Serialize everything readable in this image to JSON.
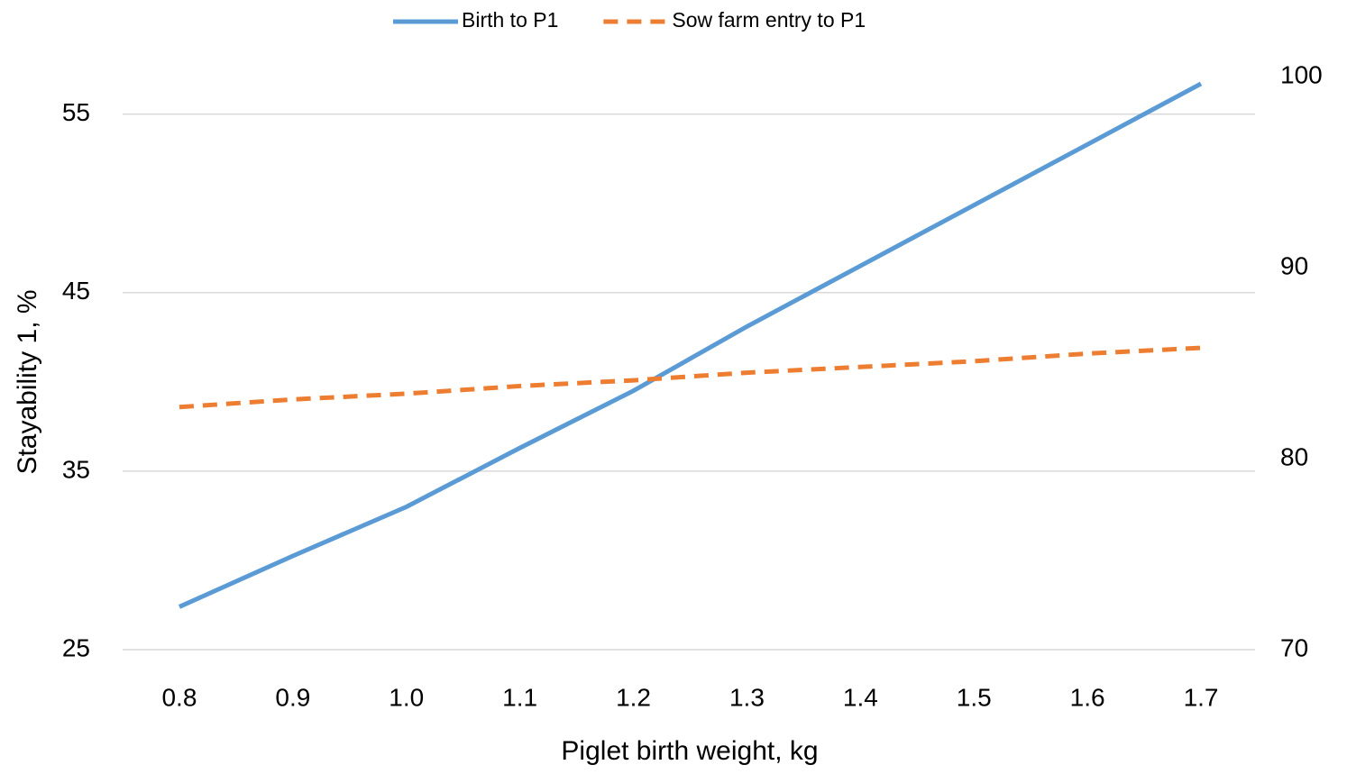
{
  "chart_data": {
    "type": "line",
    "x_label": "Piglet birth weight, kg",
    "y_label": "Stayability 1, %",
    "categories": [
      "0.8",
      "0.9",
      "1.0",
      "1.1",
      "1.2",
      "1.3",
      "1.4",
      "1.5",
      "1.6",
      "1.7"
    ],
    "series": [
      {
        "name": "Birth to P1",
        "color": "#5b9bd5",
        "dash": false,
        "axis": "y",
        "values": [
          27.4,
          30.25,
          33.0,
          36.3,
          39.5,
          43.1,
          46.5,
          49.9,
          53.3,
          56.7
        ]
      },
      {
        "name": "Sow farm entry to P1",
        "color": "#ed7d31",
        "dash": true,
        "axis": "y2",
        "values": [
          82.7,
          83.1,
          83.4,
          83.8,
          84.1,
          84.5,
          84.8,
          85.1,
          85.5,
          85.8
        ]
      }
    ],
    "ylim": [
      25,
      57.1
    ],
    "yticks": [
      25,
      35,
      45,
      55
    ],
    "y2lim": [
      70,
      100
    ],
    "y2ticks": [
      70,
      80,
      90,
      100
    ],
    "grid": true,
    "legend": "top"
  }
}
